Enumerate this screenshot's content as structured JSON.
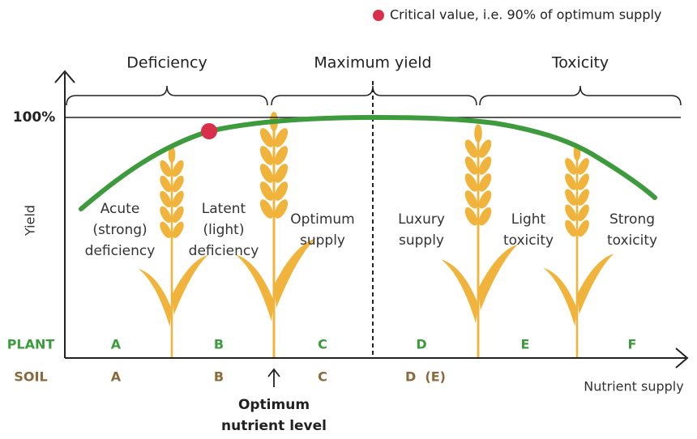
{
  "legend": {
    "label": "Critical value, i.e. 90% of optimum supply"
  },
  "zones": [
    "Deficiency",
    "Maximum yield",
    "Toxicity"
  ],
  "axes": {
    "y_label": "Yield",
    "y_max_label": "100%",
    "x_label": "Nutrient supply"
  },
  "stages": [
    {
      "lines": [
        "Acute",
        "(strong)",
        "deficiency"
      ]
    },
    {
      "lines": [
        "Latent",
        "(light)",
        "deficiency"
      ]
    },
    {
      "lines": [
        "Optimum",
        "supply"
      ]
    },
    {
      "lines": [
        "Luxury",
        "supply"
      ]
    },
    {
      "lines": [
        "Light",
        "toxicity"
      ]
    },
    {
      "lines": [
        "Strong",
        "toxicity"
      ]
    }
  ],
  "plant_row": {
    "label": "PLANT",
    "classes": [
      "A",
      "B",
      "C",
      "D",
      "E",
      "F"
    ]
  },
  "soil_row": {
    "label": "SOIL",
    "classes": [
      "A",
      "B",
      "C",
      "D  (E)"
    ]
  },
  "optimum_marker": {
    "lines": [
      "Optimum",
      "nutrient level"
    ]
  }
}
